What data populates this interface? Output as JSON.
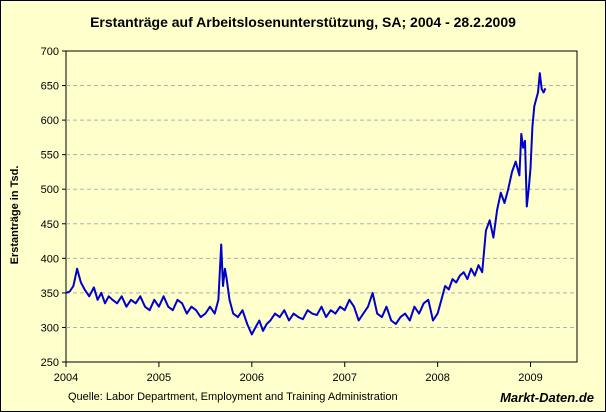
{
  "chart_data": {
    "type": "line",
    "title": "Erstanträge auf Arbeitslosenunterstützung, SA;  2004 - 28.2.2009",
    "ylabel": "Erstanträge in Tsd.",
    "xlabel": "",
    "ylim": [
      250,
      700
    ],
    "xlim": [
      2004,
      2009.5
    ],
    "y_ticks": [
      250,
      300,
      350,
      400,
      450,
      500,
      550,
      600,
      650,
      700
    ],
    "x_ticks": [
      {
        "value": 2004,
        "label": "2004"
      },
      {
        "value": 2005,
        "label": "2005"
      },
      {
        "value": 2006,
        "label": "2006"
      },
      {
        "value": 2007,
        "label": "2007"
      },
      {
        "value": 2008,
        "label": "2008"
      },
      {
        "value": 2009,
        "label": "2009"
      }
    ],
    "grid": "horizontal-dashed",
    "legend": "none",
    "series": [
      {
        "color": "#0000cc",
        "x": [
          2004.0,
          2004.04,
          2004.08,
          2004.12,
          2004.16,
          2004.2,
          2004.25,
          2004.3,
          2004.34,
          2004.38,
          2004.42,
          2004.46,
          2004.5,
          2004.55,
          2004.6,
          2004.65,
          2004.7,
          2004.75,
          2004.8,
          2004.85,
          2004.9,
          2004.95,
          2005.0,
          2005.05,
          2005.1,
          2005.15,
          2005.2,
          2005.25,
          2005.3,
          2005.35,
          2005.4,
          2005.45,
          2005.5,
          2005.55,
          2005.6,
          2005.64,
          2005.67,
          2005.69,
          2005.71,
          2005.73,
          2005.76,
          2005.8,
          2005.85,
          2005.9,
          2005.95,
          2006.0,
          2006.04,
          2006.08,
          2006.12,
          2006.16,
          2006.2,
          2006.25,
          2006.3,
          2006.35,
          2006.4,
          2006.45,
          2006.5,
          2006.55,
          2006.6,
          2006.65,
          2006.7,
          2006.75,
          2006.8,
          2006.85,
          2006.9,
          2006.95,
          2007.0,
          2007.05,
          2007.1,
          2007.15,
          2007.2,
          2007.25,
          2007.3,
          2007.35,
          2007.4,
          2007.45,
          2007.5,
          2007.55,
          2007.6,
          2007.65,
          2007.7,
          2007.75,
          2007.8,
          2007.85,
          2007.9,
          2007.95,
          2008.0,
          2008.04,
          2008.08,
          2008.12,
          2008.16,
          2008.2,
          2008.24,
          2008.28,
          2008.32,
          2008.36,
          2008.4,
          2008.44,
          2008.48,
          2008.52,
          2008.56,
          2008.6,
          2008.64,
          2008.68,
          2008.72,
          2008.76,
          2008.8,
          2008.84,
          2008.88,
          2008.9,
          2008.92,
          2008.94,
          2008.96,
          2008.98,
          2009.0,
          2009.02,
          2009.04,
          2009.06,
          2009.08,
          2009.1,
          2009.12,
          2009.14,
          2009.16
        ],
        "values": [
          350,
          352,
          360,
          385,
          365,
          355,
          345,
          358,
          340,
          350,
          335,
          345,
          340,
          335,
          345,
          330,
          340,
          335,
          345,
          330,
          325,
          340,
          330,
          345,
          330,
          325,
          340,
          335,
          320,
          330,
          325,
          315,
          320,
          330,
          320,
          340,
          420,
          360,
          385,
          370,
          340,
          320,
          315,
          325,
          305,
          290,
          300,
          310,
          295,
          305,
          310,
          320,
          315,
          325,
          310,
          320,
          315,
          312,
          325,
          320,
          318,
          330,
          315,
          325,
          320,
          330,
          325,
          340,
          330,
          310,
          320,
          330,
          350,
          320,
          315,
          330,
          310,
          305,
          315,
          320,
          310,
          330,
          320,
          335,
          340,
          310,
          320,
          340,
          360,
          355,
          370,
          365,
          375,
          380,
          370,
          385,
          375,
          390,
          380,
          440,
          455,
          430,
          470,
          495,
          480,
          500,
          525,
          540,
          520,
          580,
          560,
          570,
          475,
          500,
          530,
          590,
          620,
          630,
          640,
          668,
          645,
          640,
          646
        ]
      }
    ]
  },
  "footer": {
    "source": "Quelle: Labor Department, Employment and Training Administration",
    "brand": "Markt-Daten.de"
  },
  "colors": {
    "background": "#ffffcc",
    "plot_background": "#ffffcc",
    "line": "#0000cc",
    "grid": "#b0b0b0"
  }
}
